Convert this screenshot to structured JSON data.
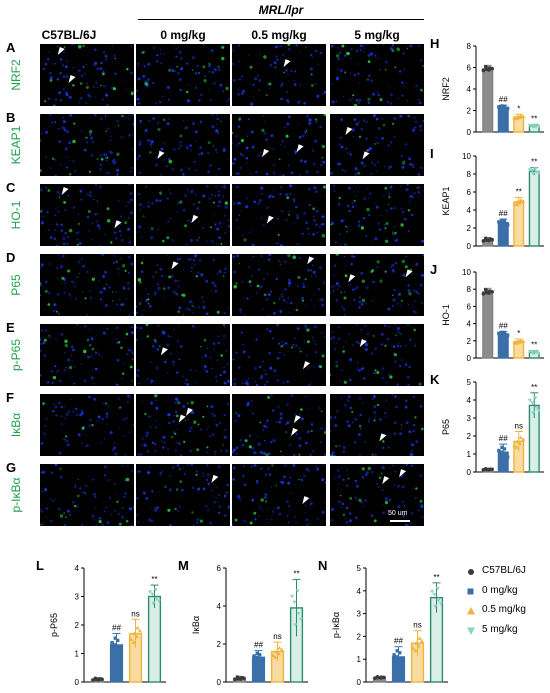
{
  "figure": {
    "column_headers": [
      "C57BL/6J",
      "0 mg/kg",
      "0.5 mg/kg",
      "5 mg/kg"
    ],
    "group_header": "MRL/lpr",
    "rows": [
      {
        "letter": "A",
        "marker": "NRF2"
      },
      {
        "letter": "B",
        "marker": "KEAP1"
      },
      {
        "letter": "C",
        "marker": "HO-1"
      },
      {
        "letter": "D",
        "marker": "P65"
      },
      {
        "letter": "E",
        "marker": "p-P65"
      },
      {
        "letter": "F",
        "marker": "IκBα"
      },
      {
        "letter": "G",
        "marker": "p-IκBα"
      }
    ],
    "scale_bar": "50 um",
    "arrowheads_per_row": [
      [
        2,
        0,
        1,
        0
      ],
      [
        0,
        1,
        2,
        2
      ],
      [
        2,
        1,
        1,
        0
      ],
      [
        0,
        1,
        1,
        2
      ],
      [
        0,
        1,
        1,
        1
      ],
      [
        0,
        2,
        2,
        1
      ],
      [
        0,
        1,
        1,
        2
      ]
    ],
    "colors": {
      "group0": "#7f7f7f",
      "group1": "#3a6fa8",
      "group2": "#f0b43c",
      "group3": "#2e8b6e",
      "nucleus": "#1e3cff",
      "signal": "#2ed24a",
      "marker_text": "#1fa14a"
    },
    "legend": [
      "C57BL/6J",
      "0 mg/kg",
      "0.5 mg/kg",
      "5 mg/kg"
    ]
  },
  "chart_data": [
    {
      "panel": "H",
      "type": "bar",
      "ylabel": "NRF2",
      "ylim": [
        0,
        8
      ],
      "yticks": [
        0,
        2,
        4,
        6,
        8
      ],
      "categories": [
        "C57BL/6J",
        "0 mg/kg",
        "0.5 mg/kg",
        "5 mg/kg"
      ],
      "values": [
        5.9,
        2.3,
        1.4,
        0.55
      ],
      "errors": [
        0.3,
        0.2,
        0.25,
        0.15
      ],
      "annotations": [
        "",
        "##",
        "*",
        "**"
      ]
    },
    {
      "panel": "I",
      "type": "bar",
      "ylabel": "KEAP1",
      "ylim": [
        0,
        10
      ],
      "yticks": [
        0,
        2,
        4,
        6,
        8,
        10
      ],
      "categories": [
        "C57BL/6J",
        "0 mg/kg",
        "0.5 mg/kg",
        "5 mg/kg"
      ],
      "values": [
        0.7,
        2.6,
        4.9,
        8.3
      ],
      "errors": [
        0.25,
        0.4,
        0.5,
        0.4
      ],
      "annotations": [
        "",
        "##",
        "**",
        "**"
      ]
    },
    {
      "panel": "J",
      "type": "bar",
      "ylabel": "HO-1",
      "ylim": [
        0,
        10
      ],
      "yticks": [
        0,
        2,
        4,
        6,
        8,
        10
      ],
      "categories": [
        "C57BL/6J",
        "0 mg/kg",
        "0.5 mg/kg",
        "5 mg/kg"
      ],
      "values": [
        7.7,
        2.8,
        1.9,
        0.65
      ],
      "errors": [
        0.4,
        0.3,
        0.3,
        0.2
      ],
      "annotations": [
        "",
        "##",
        "*",
        "**"
      ]
    },
    {
      "panel": "K",
      "type": "bar",
      "ylabel": "P65",
      "ylim": [
        0,
        5
      ],
      "yticks": [
        0,
        1,
        2,
        3,
        4,
        5
      ],
      "categories": [
        "C57BL/6J",
        "0 mg/kg",
        "0.5 mg/kg",
        "5 mg/kg"
      ],
      "values": [
        0.15,
        1.1,
        1.7,
        3.7
      ],
      "errors": [
        0.05,
        0.45,
        0.55,
        0.7
      ],
      "annotations": [
        "",
        "##",
        "ns",
        "**"
      ]
    },
    {
      "panel": "L",
      "type": "bar",
      "ylabel": "p-P65",
      "ylim": [
        0,
        4
      ],
      "yticks": [
        0,
        1,
        2,
        3,
        4
      ],
      "categories": [
        "C57BL/6J",
        "0 mg/kg",
        "0.5 mg/kg",
        "5 mg/kg"
      ],
      "values": [
        0.1,
        1.3,
        1.7,
        3.0
      ],
      "errors": [
        0.05,
        0.4,
        0.5,
        0.4
      ],
      "annotations": [
        "",
        "##",
        "ns",
        "**"
      ]
    },
    {
      "panel": "M",
      "type": "bar",
      "ylabel": "IκBα",
      "ylim": [
        0,
        6
      ],
      "yticks": [
        0,
        2,
        4,
        6
      ],
      "categories": [
        "C57BL/6J",
        "0 mg/kg",
        "0.5 mg/kg",
        "5 mg/kg"
      ],
      "values": [
        0.2,
        1.3,
        1.6,
        3.9
      ],
      "errors": [
        0.1,
        0.35,
        0.5,
        1.5
      ],
      "annotations": [
        "",
        "##",
        "ns",
        "**"
      ]
    },
    {
      "panel": "N",
      "type": "bar",
      "ylabel": "p-IκBα",
      "ylim": [
        0,
        5
      ],
      "yticks": [
        0,
        1,
        2,
        3,
        4,
        5
      ],
      "categories": [
        "C57BL/6J",
        "0 mg/kg",
        "0.5 mg/kg",
        "5 mg/kg"
      ],
      "values": [
        0.2,
        1.1,
        1.7,
        3.7
      ],
      "errors": [
        0.05,
        0.45,
        0.55,
        0.65
      ],
      "annotations": [
        "",
        "##",
        "ns",
        "**"
      ]
    }
  ]
}
